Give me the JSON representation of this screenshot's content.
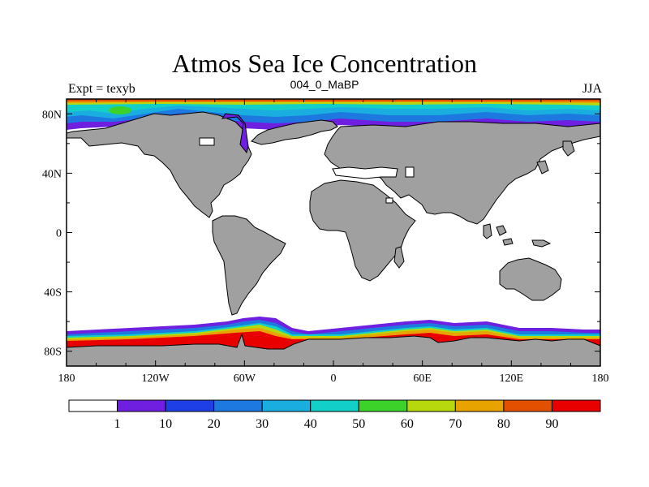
{
  "title": "Atmos Sea Ice Concentration",
  "left_label": "Expt = texyb",
  "center_label": "004_0_MaBP",
  "right_label": "JJA",
  "chart_data": {
    "type": "heatmap",
    "projection": "cylindrical equidistant",
    "xlim": [
      -180,
      180
    ],
    "ylim": [
      -90,
      90
    ],
    "x_ticks": [
      {
        "value": -180,
        "label": "180"
      },
      {
        "value": -120,
        "label": "120W"
      },
      {
        "value": -60,
        "label": "60W"
      },
      {
        "value": 0,
        "label": "0"
      },
      {
        "value": 60,
        "label": "60E"
      },
      {
        "value": 120,
        "label": "120E"
      },
      {
        "value": 180,
        "label": "180"
      }
    ],
    "y_ticks": [
      {
        "value": 80,
        "label": "80N"
      },
      {
        "value": 40,
        "label": "40N"
      },
      {
        "value": 0,
        "label": "0"
      },
      {
        "value": -40,
        "label": "40S"
      },
      {
        "value": -80,
        "label": "80S"
      }
    ],
    "colorbar": {
      "labels": [
        "1",
        "10",
        "20",
        "30",
        "40",
        "50",
        "60",
        "70",
        "80",
        "90"
      ],
      "colors": [
        "#ffffff",
        "#6e1fe0",
        "#1f3fe6",
        "#1d78e0",
        "#1aaee0",
        "#12cfc8",
        "#3cd22a",
        "#b6d80d",
        "#e8a300",
        "#e25000",
        "#e80000"
      ]
    },
    "land_color": "#a0a0a0"
  }
}
